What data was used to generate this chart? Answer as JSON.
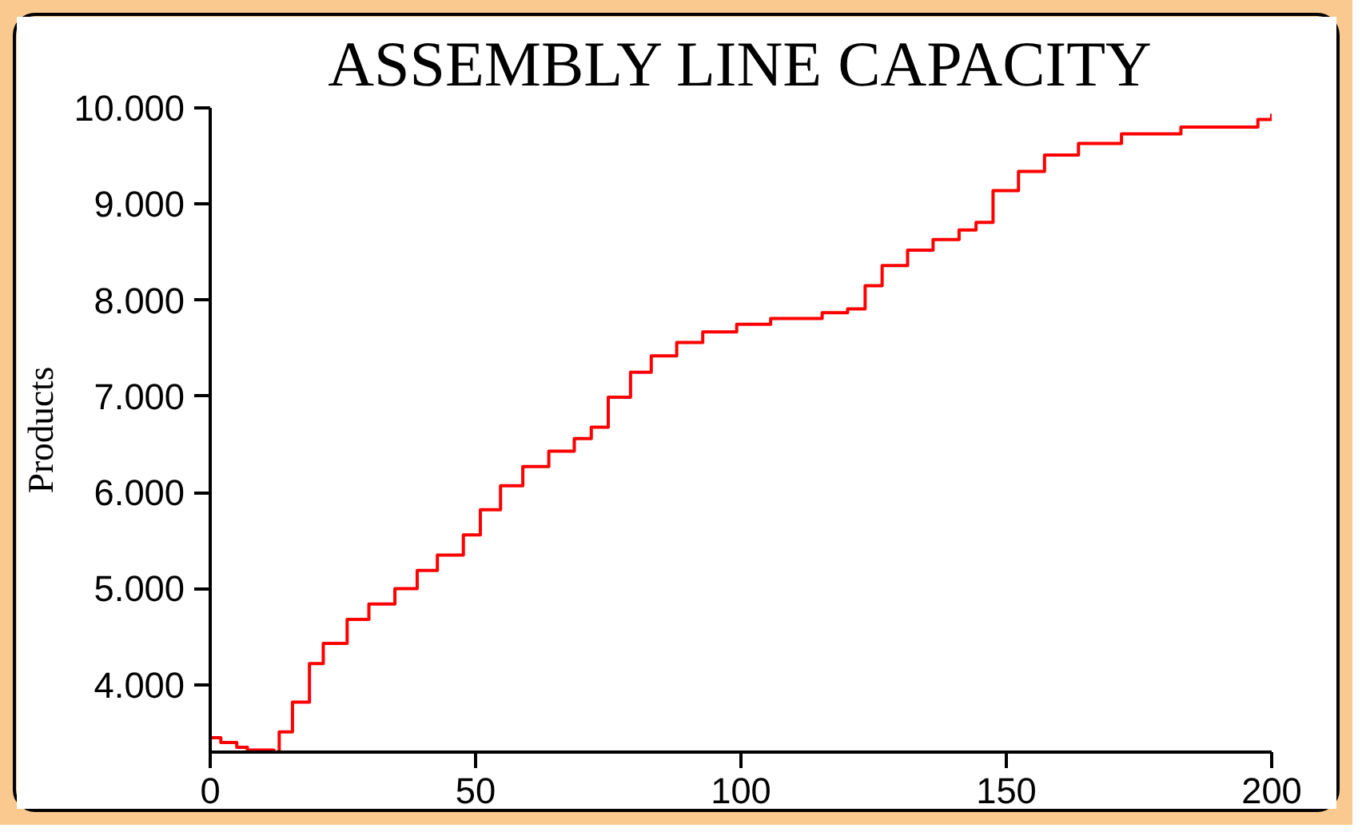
{
  "chart_data": {
    "type": "step",
    "title": "ASSEMBLY LINE CAPACITY",
    "ylabel": "Products",
    "grid": false,
    "marker": "none",
    "line_style": "solid",
    "xlim": [
      0,
      200
    ],
    "ylim": [
      3300,
      10000
    ],
    "xticks": [
      0,
      50,
      100,
      150,
      200
    ],
    "yticks": [
      {
        "value": 4000,
        "label": "4.000"
      },
      {
        "value": 5000,
        "label": "5.000"
      },
      {
        "value": 6000,
        "label": "6.000"
      },
      {
        "value": 7000,
        "label": "7.000"
      },
      {
        "value": 8000,
        "label": "8.000"
      },
      {
        "value": 9000,
        "label": "9.000"
      },
      {
        "value": 10000,
        "label": "10.000"
      }
    ],
    "series": [
      {
        "color": "#ff0000",
        "x": [
          0,
          2,
          5,
          7,
          12,
          13,
          15.5,
          18.7,
          21.3,
          25.8,
          29.9,
          34.8,
          39,
          42.8,
          47.7,
          50.9,
          54.7,
          58.9,
          63.8,
          68.6,
          71.8,
          75,
          79.2,
          83.1,
          87.9,
          92.8,
          99.2,
          105.6,
          115.3,
          120.1,
          123.4,
          126.6,
          131.4,
          136.2,
          141.1,
          144.3,
          147.5,
          152.3,
          157.2,
          163.6,
          171.7,
          182.9,
          197.4,
          200
        ],
        "values": [
          3450,
          3400,
          3350,
          3320,
          3300,
          3510,
          3820,
          4220,
          4430,
          4680,
          4840,
          5000,
          5190,
          5350,
          5560,
          5820,
          6070,
          6270,
          6430,
          6560,
          6680,
          6990,
          7250,
          7420,
          7560,
          7670,
          7750,
          7810,
          7870,
          7910,
          8150,
          8360,
          8520,
          8630,
          8730,
          8810,
          9140,
          9340,
          9510,
          9630,
          9730,
          9800,
          9880,
          9940
        ]
      }
    ]
  }
}
